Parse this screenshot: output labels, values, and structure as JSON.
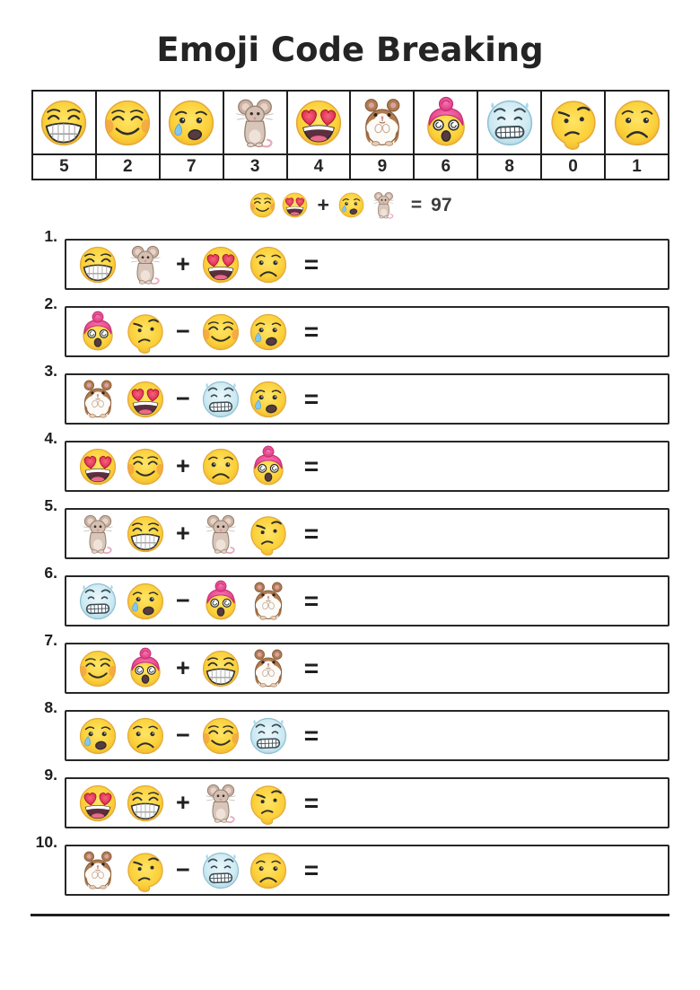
{
  "title": "Emoji Code Breaking",
  "key": {
    "columns": [
      {
        "emoji": "grin",
        "value": "5"
      },
      {
        "emoji": "blush",
        "value": "2"
      },
      {
        "emoji": "cry",
        "value": "7"
      },
      {
        "emoji": "mouse",
        "value": "3"
      },
      {
        "emoji": "heart-eyes",
        "value": "4"
      },
      {
        "emoji": "hamster",
        "value": "9"
      },
      {
        "emoji": "shocked-pink",
        "value": "6"
      },
      {
        "emoji": "blue-grimace",
        "value": "8"
      },
      {
        "emoji": "thinking",
        "value": "0"
      },
      {
        "emoji": "frown",
        "value": "1"
      }
    ]
  },
  "example": {
    "left": [
      "blush",
      "heart-eyes"
    ],
    "operator": "+",
    "right": [
      "cry",
      "mouse"
    ],
    "equals": "=",
    "result": "97"
  },
  "problems": [
    {
      "number": "1.",
      "left": [
        "grin",
        "mouse"
      ],
      "operator": "+",
      "right": [
        "heart-eyes",
        "frown"
      ],
      "equals": "="
    },
    {
      "number": "2.",
      "left": [
        "shocked-pink",
        "thinking"
      ],
      "operator": "−",
      "right": [
        "blush",
        "cry"
      ],
      "equals": "="
    },
    {
      "number": "3.",
      "left": [
        "hamster",
        "heart-eyes"
      ],
      "operator": "−",
      "right": [
        "blue-grimace",
        "cry"
      ],
      "equals": "="
    },
    {
      "number": "4.",
      "left": [
        "heart-eyes",
        "blush"
      ],
      "operator": "+",
      "right": [
        "frown",
        "shocked-pink"
      ],
      "equals": "="
    },
    {
      "number": "5.",
      "left": [
        "mouse",
        "grin"
      ],
      "operator": "+",
      "right": [
        "mouse",
        "thinking"
      ],
      "equals": "="
    },
    {
      "number": "6.",
      "left": [
        "blue-grimace",
        "cry"
      ],
      "operator": "−",
      "right": [
        "shocked-pink",
        "hamster"
      ],
      "equals": "="
    },
    {
      "number": "7.",
      "left": [
        "blush",
        "shocked-pink"
      ],
      "operator": "+",
      "right": [
        "grin",
        "hamster"
      ],
      "equals": "="
    },
    {
      "number": "8.",
      "left": [
        "cry",
        "frown"
      ],
      "operator": "−",
      "right": [
        "blush",
        "blue-grimace"
      ],
      "equals": "="
    },
    {
      "number": "9.",
      "left": [
        "heart-eyes",
        "grin"
      ],
      "operator": "+",
      "right": [
        "mouse",
        "thinking"
      ],
      "equals": "="
    },
    {
      "number": "10.",
      "left": [
        "hamster",
        "thinking"
      ],
      "operator": "−",
      "right": [
        "blue-grimace",
        "frown"
      ],
      "equals": "="
    }
  ],
  "colors": {
    "face_yellow": "#FBCF38",
    "face_blue": "#CDE9F2",
    "hair_pink": "#E0337F",
    "heart_red": "#D81F44",
    "tear_blue": "#82C7F0",
    "mouse_tan": "#D4BFB2",
    "hamster_brown": "#B07C50",
    "ink": "#2E2E2E",
    "rule_black": "#1F1F1F"
  }
}
